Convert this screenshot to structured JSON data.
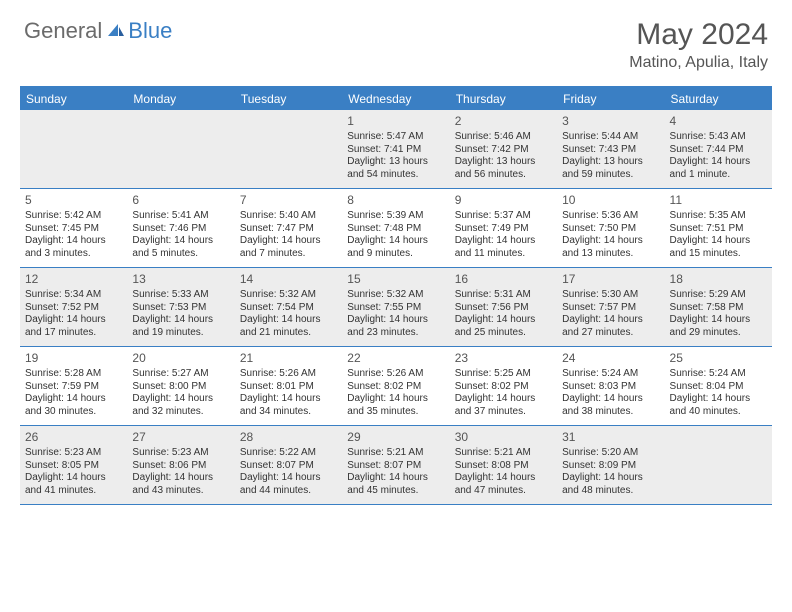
{
  "logo": {
    "general": "General",
    "blue": "Blue"
  },
  "title": "May 2024",
  "location": "Matino, Apulia, Italy",
  "colors": {
    "accent": "#3a7fc4",
    "shade": "#ededed",
    "text": "#333333",
    "headerText": "#ffffff",
    "titleText": "#555555",
    "logoGray": "#6b6b6b"
  },
  "dayNames": [
    "Sunday",
    "Monday",
    "Tuesday",
    "Wednesday",
    "Thursday",
    "Friday",
    "Saturday"
  ],
  "weeks": [
    [
      {
        "n": "",
        "sr": "",
        "ss": "",
        "dl": ""
      },
      {
        "n": "",
        "sr": "",
        "ss": "",
        "dl": ""
      },
      {
        "n": "",
        "sr": "",
        "ss": "",
        "dl": ""
      },
      {
        "n": "1",
        "sr": "Sunrise: 5:47 AM",
        "ss": "Sunset: 7:41 PM",
        "dl": "Daylight: 13 hours and 54 minutes."
      },
      {
        "n": "2",
        "sr": "Sunrise: 5:46 AM",
        "ss": "Sunset: 7:42 PM",
        "dl": "Daylight: 13 hours and 56 minutes."
      },
      {
        "n": "3",
        "sr": "Sunrise: 5:44 AM",
        "ss": "Sunset: 7:43 PM",
        "dl": "Daylight: 13 hours and 59 minutes."
      },
      {
        "n": "4",
        "sr": "Sunrise: 5:43 AM",
        "ss": "Sunset: 7:44 PM",
        "dl": "Daylight: 14 hours and 1 minute."
      }
    ],
    [
      {
        "n": "5",
        "sr": "Sunrise: 5:42 AM",
        "ss": "Sunset: 7:45 PM",
        "dl": "Daylight: 14 hours and 3 minutes."
      },
      {
        "n": "6",
        "sr": "Sunrise: 5:41 AM",
        "ss": "Sunset: 7:46 PM",
        "dl": "Daylight: 14 hours and 5 minutes."
      },
      {
        "n": "7",
        "sr": "Sunrise: 5:40 AM",
        "ss": "Sunset: 7:47 PM",
        "dl": "Daylight: 14 hours and 7 minutes."
      },
      {
        "n": "8",
        "sr": "Sunrise: 5:39 AM",
        "ss": "Sunset: 7:48 PM",
        "dl": "Daylight: 14 hours and 9 minutes."
      },
      {
        "n": "9",
        "sr": "Sunrise: 5:37 AM",
        "ss": "Sunset: 7:49 PM",
        "dl": "Daylight: 14 hours and 11 minutes."
      },
      {
        "n": "10",
        "sr": "Sunrise: 5:36 AM",
        "ss": "Sunset: 7:50 PM",
        "dl": "Daylight: 14 hours and 13 minutes."
      },
      {
        "n": "11",
        "sr": "Sunrise: 5:35 AM",
        "ss": "Sunset: 7:51 PM",
        "dl": "Daylight: 14 hours and 15 minutes."
      }
    ],
    [
      {
        "n": "12",
        "sr": "Sunrise: 5:34 AM",
        "ss": "Sunset: 7:52 PM",
        "dl": "Daylight: 14 hours and 17 minutes."
      },
      {
        "n": "13",
        "sr": "Sunrise: 5:33 AM",
        "ss": "Sunset: 7:53 PM",
        "dl": "Daylight: 14 hours and 19 minutes."
      },
      {
        "n": "14",
        "sr": "Sunrise: 5:32 AM",
        "ss": "Sunset: 7:54 PM",
        "dl": "Daylight: 14 hours and 21 minutes."
      },
      {
        "n": "15",
        "sr": "Sunrise: 5:32 AM",
        "ss": "Sunset: 7:55 PM",
        "dl": "Daylight: 14 hours and 23 minutes."
      },
      {
        "n": "16",
        "sr": "Sunrise: 5:31 AM",
        "ss": "Sunset: 7:56 PM",
        "dl": "Daylight: 14 hours and 25 minutes."
      },
      {
        "n": "17",
        "sr": "Sunrise: 5:30 AM",
        "ss": "Sunset: 7:57 PM",
        "dl": "Daylight: 14 hours and 27 minutes."
      },
      {
        "n": "18",
        "sr": "Sunrise: 5:29 AM",
        "ss": "Sunset: 7:58 PM",
        "dl": "Daylight: 14 hours and 29 minutes."
      }
    ],
    [
      {
        "n": "19",
        "sr": "Sunrise: 5:28 AM",
        "ss": "Sunset: 7:59 PM",
        "dl": "Daylight: 14 hours and 30 minutes."
      },
      {
        "n": "20",
        "sr": "Sunrise: 5:27 AM",
        "ss": "Sunset: 8:00 PM",
        "dl": "Daylight: 14 hours and 32 minutes."
      },
      {
        "n": "21",
        "sr": "Sunrise: 5:26 AM",
        "ss": "Sunset: 8:01 PM",
        "dl": "Daylight: 14 hours and 34 minutes."
      },
      {
        "n": "22",
        "sr": "Sunrise: 5:26 AM",
        "ss": "Sunset: 8:02 PM",
        "dl": "Daylight: 14 hours and 35 minutes."
      },
      {
        "n": "23",
        "sr": "Sunrise: 5:25 AM",
        "ss": "Sunset: 8:02 PM",
        "dl": "Daylight: 14 hours and 37 minutes."
      },
      {
        "n": "24",
        "sr": "Sunrise: 5:24 AM",
        "ss": "Sunset: 8:03 PM",
        "dl": "Daylight: 14 hours and 38 minutes."
      },
      {
        "n": "25",
        "sr": "Sunrise: 5:24 AM",
        "ss": "Sunset: 8:04 PM",
        "dl": "Daylight: 14 hours and 40 minutes."
      }
    ],
    [
      {
        "n": "26",
        "sr": "Sunrise: 5:23 AM",
        "ss": "Sunset: 8:05 PM",
        "dl": "Daylight: 14 hours and 41 minutes."
      },
      {
        "n": "27",
        "sr": "Sunrise: 5:23 AM",
        "ss": "Sunset: 8:06 PM",
        "dl": "Daylight: 14 hours and 43 minutes."
      },
      {
        "n": "28",
        "sr": "Sunrise: 5:22 AM",
        "ss": "Sunset: 8:07 PM",
        "dl": "Daylight: 14 hours and 44 minutes."
      },
      {
        "n": "29",
        "sr": "Sunrise: 5:21 AM",
        "ss": "Sunset: 8:07 PM",
        "dl": "Daylight: 14 hours and 45 minutes."
      },
      {
        "n": "30",
        "sr": "Sunrise: 5:21 AM",
        "ss": "Sunset: 8:08 PM",
        "dl": "Daylight: 14 hours and 47 minutes."
      },
      {
        "n": "31",
        "sr": "Sunrise: 5:20 AM",
        "ss": "Sunset: 8:09 PM",
        "dl": "Daylight: 14 hours and 48 minutes."
      },
      {
        "n": "",
        "sr": "",
        "ss": "",
        "dl": ""
      }
    ]
  ]
}
